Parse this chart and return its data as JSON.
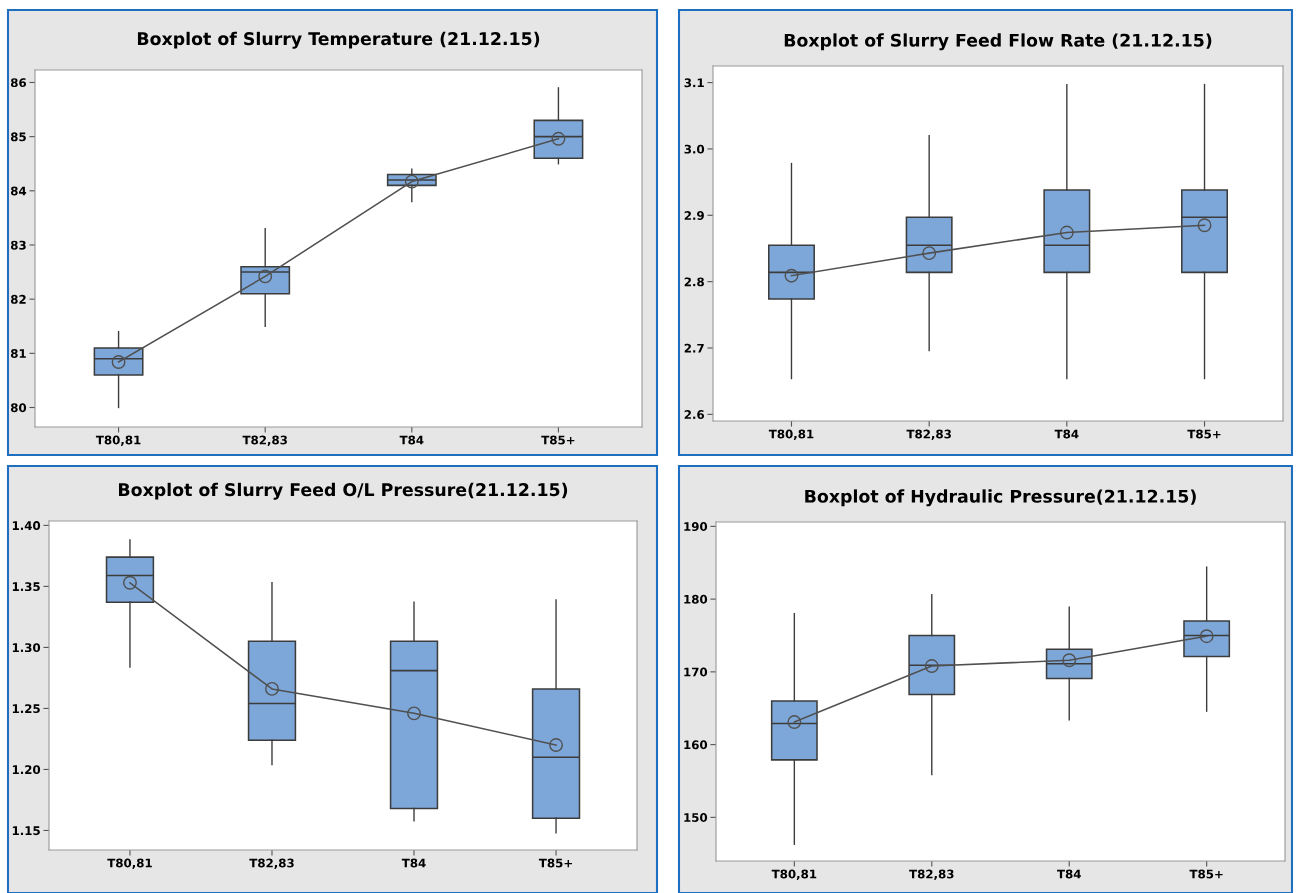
{
  "chart_data": [
    {
      "type": "box",
      "title": "Boxplot of Slurry Temperature (21.12.15)",
      "categories": [
        "T80,81",
        "T82,83",
        "T84",
        "T85+"
      ],
      "ylim": [
        79.64,
        86.23
      ],
      "yticks": [
        80,
        81,
        82,
        83,
        84,
        85,
        86
      ],
      "grid": false,
      "series": [
        {
          "type": "box",
          "color": "#7da7d9",
          "boxes": [
            {
              "low": 80.0,
              "q1": 80.6,
              "median": 80.9,
              "q3": 81.1,
              "high": 81.4
            },
            {
              "low": 81.5,
              "q1": 82.1,
              "median": 82.5,
              "q3": 82.6,
              "high": 83.3
            },
            {
              "low": 83.8,
              "q1": 84.1,
              "median": 84.2,
              "q3": 84.3,
              "high": 84.4
            },
            {
              "low": 84.5,
              "q1": 84.6,
              "median": 85.0,
              "q3": 85.3,
              "high": 85.9
            }
          ]
        },
        {
          "type": "line",
          "color": "#505050",
          "marker": "circle",
          "values": [
            80.84,
            82.42,
            84.17,
            84.96
          ]
        }
      ]
    },
    {
      "type": "box",
      "title": "Boxplot of Slurry Feed Flow Rate (21.12.15)",
      "categories": [
        "T80,81",
        "T82,83",
        "T84",
        "T85+"
      ],
      "ylim": [
        2.59,
        3.125
      ],
      "yticks": [
        {
          "value": 2.6,
          "label": "2.6"
        },
        {
          "value": 2.7,
          "label": "2.7"
        },
        {
          "value": 2.8,
          "label": "2.8"
        },
        {
          "value": 2.9,
          "label": "2.9"
        },
        {
          "value": 3.0,
          "label": "3.0"
        },
        {
          "value": 3.1,
          "label": "3.1"
        }
      ],
      "grid": false,
      "series": [
        {
          "type": "box",
          "color": "#7da7d9",
          "boxes": [
            {
              "low": 2.654,
              "q1": 2.774,
              "median": 2.814,
              "q3": 2.855,
              "high": 2.978
            },
            {
              "low": 2.696,
              "q1": 2.814,
              "median": 2.855,
              "q3": 2.897,
              "high": 3.02
            },
            {
              "low": 2.654,
              "q1": 2.814,
              "median": 2.855,
              "q3": 2.938,
              "high": 3.097
            },
            {
              "low": 2.654,
              "q1": 2.814,
              "median": 2.897,
              "q3": 2.938,
              "high": 3.097
            }
          ]
        },
        {
          "type": "line",
          "color": "#505050",
          "marker": "circle",
          "values": [
            2.809,
            2.843,
            2.874,
            2.885
          ]
        }
      ]
    },
    {
      "type": "box",
      "title": "Boxplot of Slurry Feed O/L Pressure(21.12.15)",
      "categories": [
        "T80,81",
        "T82,83",
        "T84",
        "T85+"
      ],
      "ylim": [
        1.134,
        1.4036
      ],
      "yticks": [
        {
          "value": 1.15,
          "label": "1.15"
        },
        {
          "value": 1.2,
          "label": "1.20"
        },
        {
          "value": 1.25,
          "label": "1.25"
        },
        {
          "value": 1.3,
          "label": "1.30"
        },
        {
          "value": 1.35,
          "label": "1.35"
        },
        {
          "value": 1.4,
          "label": "1.40"
        }
      ],
      "grid": false,
      "series": [
        {
          "type": "box",
          "color": "#7da7d9",
          "boxes": [
            {
              "low": 1.284,
              "q1": 1.337,
              "median": 1.359,
              "q3": 1.374,
              "high": 1.388
            },
            {
              "low": 1.204,
              "q1": 1.224,
              "median": 1.254,
              "q3": 1.305,
              "high": 1.353
            },
            {
              "low": 1.158,
              "q1": 1.168,
              "median": 1.281,
              "q3": 1.305,
              "high": 1.337
            },
            {
              "low": 1.148,
              "q1": 1.16,
              "median": 1.21,
              "q3": 1.266,
              "high": 1.339
            }
          ]
        },
        {
          "type": "line",
          "color": "#505050",
          "marker": "circle",
          "values": [
            1.353,
            1.266,
            1.246,
            1.22
          ]
        }
      ]
    },
    {
      "type": "box",
      "title": "Boxplot of Hydraulic Pressure(21.12.15)",
      "categories": [
        "T80,81",
        "T82,83",
        "T84",
        "T85+"
      ],
      "ylim": [
        144.0,
        190.6
      ],
      "yticks": [
        150,
        160,
        170,
        180,
        190
      ],
      "grid": false,
      "series": [
        {
          "type": "box",
          "color": "#7da7d9",
          "boxes": [
            {
              "low": 146.3,
              "q1": 157.9,
              "median": 162.9,
              "q3": 166.0,
              "high": 178.0
            },
            {
              "low": 155.9,
              "q1": 166.9,
              "median": 170.9,
              "q3": 175.0,
              "high": 180.6
            },
            {
              "low": 163.4,
              "q1": 169.1,
              "median": 171.1,
              "q3": 173.1,
              "high": 178.9
            },
            {
              "low": 164.6,
              "q1": 172.1,
              "median": 175.0,
              "q3": 177.0,
              "high": 184.4
            }
          ]
        },
        {
          "type": "line",
          "color": "#505050",
          "marker": "circle",
          "values": [
            163.1,
            170.8,
            171.6,
            174.9
          ]
        }
      ]
    }
  ]
}
